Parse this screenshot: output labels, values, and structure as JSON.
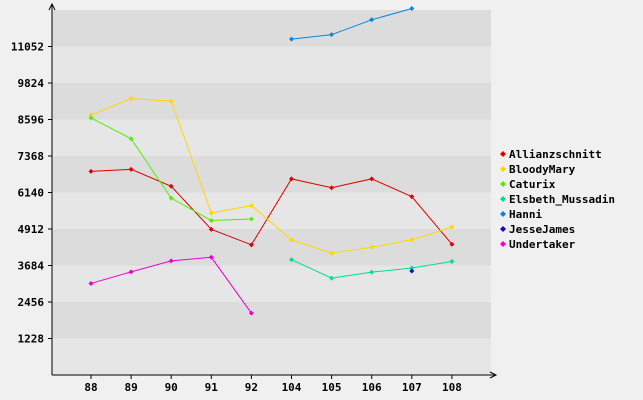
{
  "chart_data": {
    "type": "line",
    "title": "",
    "xlabel": "",
    "ylabel": "",
    "categories": [
      "88",
      "89",
      "90",
      "91",
      "92",
      "104",
      "105",
      "106",
      "107",
      "108"
    ],
    "yticks": [
      1228,
      2456,
      3684,
      4912,
      6140,
      7368,
      8596,
      9824,
      11052
    ],
    "ylim": [
      0,
      12280
    ],
    "grid": "horizontal bands",
    "legend_position": "right",
    "series": [
      {
        "name": "Allianzschnitt",
        "color": "#e00000",
        "values": [
          6850,
          6920,
          6350,
          4900,
          4380,
          6600,
          6300,
          6600,
          6000,
          4400
        ]
      },
      {
        "name": "BloodyMary",
        "color": "#ffd700",
        "values": [
          8750,
          9300,
          9220,
          5450,
          5700,
          4550,
          4100,
          4300,
          4550,
          4980
        ]
      },
      {
        "name": "Caturix",
        "color": "#55ee00",
        "values": [
          8650,
          7950,
          5950,
          5200,
          5250,
          null,
          null,
          null,
          null,
          null
        ]
      },
      {
        "name": "Elsbeth_Mussadin",
        "color": "#00e088",
        "values": [
          null,
          null,
          null,
          null,
          null,
          3880,
          3260,
          3460,
          3600,
          3820
        ]
      },
      {
        "name": "Hanni",
        "color": "#0088dd",
        "values": [
          null,
          null,
          null,
          null,
          null,
          11300,
          11450,
          11950,
          12330,
          null
        ]
      },
      {
        "name": "JesseJames",
        "color": "#2200cc",
        "values": [
          null,
          null,
          null,
          null,
          null,
          null,
          null,
          null,
          3500,
          null
        ]
      },
      {
        "name": "Undertaker",
        "color": "#ee00cc",
        "values": [
          3080,
          3470,
          3840,
          3960,
          2080,
          null,
          null,
          null,
          null,
          null
        ]
      }
    ]
  }
}
